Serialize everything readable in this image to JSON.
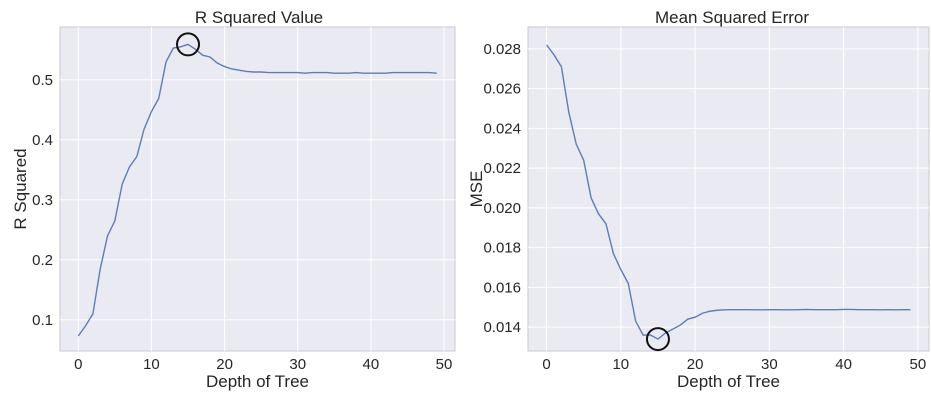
{
  "chart_data": [
    {
      "type": "line",
      "title": "R Squared Value",
      "xlabel": "Depth of Tree",
      "ylabel": "R Squared",
      "xlim": [
        -2.5,
        51.5
      ],
      "ylim": [
        0.048,
        0.588
      ],
      "xticks": [
        0,
        10,
        20,
        30,
        40,
        50
      ],
      "xtick_labels": [
        "0",
        "10",
        "20",
        "30",
        "40",
        "50"
      ],
      "yticks": [
        0.1,
        0.2,
        0.3,
        0.4,
        0.5
      ],
      "ytick_labels": [
        "0.1",
        "0.2",
        "0.3",
        "0.4",
        "0.5"
      ],
      "grid": true,
      "series": [
        {
          "color": "#4c72b0",
          "x": [
            0,
            1,
            2,
            3,
            4,
            5,
            6,
            7,
            8,
            9,
            10,
            11,
            12,
            13,
            14,
            15,
            16,
            17,
            18,
            19,
            20,
            21,
            22,
            23,
            24,
            25,
            26,
            27,
            28,
            29,
            30,
            31,
            32,
            33,
            34,
            35,
            36,
            37,
            38,
            39,
            40,
            41,
            42,
            43,
            44,
            45,
            46,
            47,
            48,
            49
          ],
          "y": [
            0.073,
            0.09,
            0.11,
            0.185,
            0.24,
            0.265,
            0.326,
            0.355,
            0.372,
            0.418,
            0.447,
            0.469,
            0.53,
            0.553,
            0.555,
            0.559,
            0.551,
            0.541,
            0.538,
            0.528,
            0.522,
            0.518,
            0.516,
            0.514,
            0.513,
            0.513,
            0.512,
            0.512,
            0.512,
            0.512,
            0.512,
            0.511,
            0.512,
            0.512,
            0.512,
            0.511,
            0.511,
            0.511,
            0.512,
            0.511,
            0.511,
            0.511,
            0.511,
            0.512,
            0.512,
            0.512,
            0.512,
            0.512,
            0.512,
            0.511
          ]
        }
      ],
      "highlight": {
        "x": 15,
        "y": 0.559
      }
    },
    {
      "type": "line",
      "title": "Mean Squared Error",
      "xlabel": "Depth of Tree",
      "ylabel": "MSE",
      "xlim": [
        -2.5,
        51.5
      ],
      "ylim": [
        0.0128,
        0.0291
      ],
      "xticks": [
        0,
        10,
        20,
        30,
        40,
        50
      ],
      "xtick_labels": [
        "0",
        "10",
        "20",
        "30",
        "40",
        "50"
      ],
      "yticks": [
        0.014,
        0.016,
        0.018,
        0.02,
        0.022,
        0.024,
        0.026,
        0.028
      ],
      "ytick_labels": [
        "0.014",
        "0.016",
        "0.018",
        "0.020",
        "0.022",
        "0.024",
        "0.026",
        "0.028"
      ],
      "grid": true,
      "series": [
        {
          "color": "#4c72b0",
          "x": [
            0,
            1,
            2,
            3,
            4,
            5,
            6,
            7,
            8,
            9,
            10,
            11,
            12,
            13,
            14,
            15,
            16,
            17,
            18,
            19,
            20,
            21,
            22,
            23,
            24,
            25,
            26,
            27,
            28,
            29,
            30,
            31,
            32,
            33,
            34,
            35,
            36,
            37,
            38,
            39,
            40,
            41,
            42,
            43,
            44,
            45,
            46,
            47,
            48,
            49
          ],
          "y": [
            0.0282,
            0.0277,
            0.0271,
            0.0248,
            0.0232,
            0.0224,
            0.0205,
            0.0197,
            0.0192,
            0.0177,
            0.0169,
            0.0162,
            0.0143,
            0.0136,
            0.0136,
            0.0134,
            0.0137,
            0.0139,
            0.0141,
            0.0144,
            0.0145,
            0.0147,
            0.0148,
            0.01485,
            0.01487,
            0.01488,
            0.01488,
            0.01488,
            0.01487,
            0.01487,
            0.01488,
            0.01488,
            0.01487,
            0.01487,
            0.01488,
            0.01489,
            0.01488,
            0.01488,
            0.01488,
            0.01488,
            0.01489,
            0.01489,
            0.01488,
            0.01488,
            0.01488,
            0.01487,
            0.01488,
            0.01487,
            0.01488,
            0.01488
          ]
        }
      ],
      "highlight": {
        "x": 15,
        "y": 0.0134
      }
    }
  ]
}
